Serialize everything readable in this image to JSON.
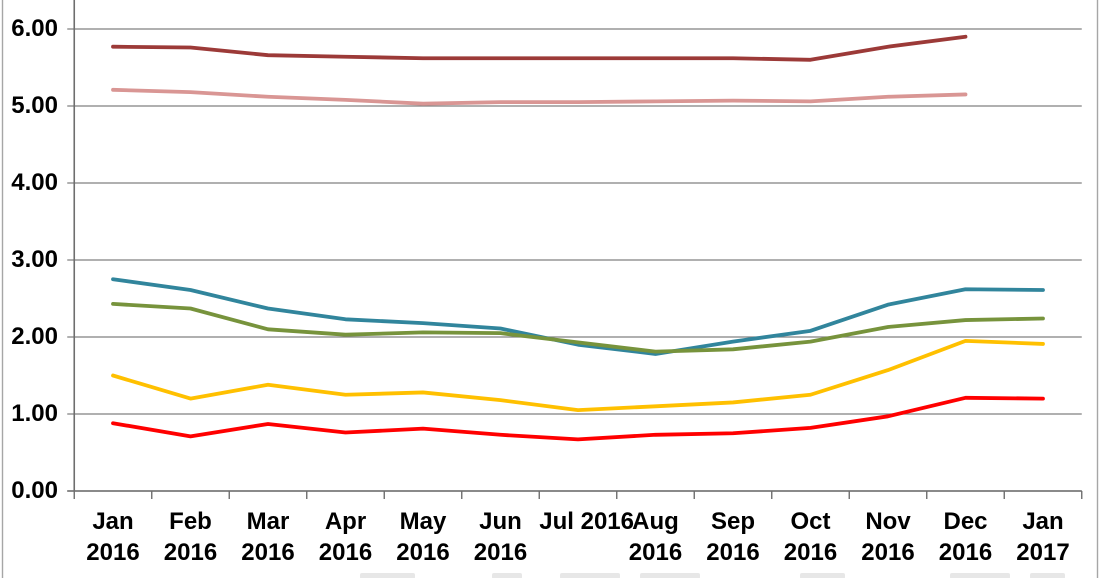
{
  "chart_data": {
    "type": "line",
    "title": "",
    "xlabel": "",
    "ylabel": "",
    "categories": [
      "Jan 2016",
      "Feb 2016",
      "Mar 2016",
      "Apr 2016",
      "May 2016",
      "Jun 2016",
      "Jul 2016",
      "Aug 2016",
      "Sep 2016",
      "Oct 2016",
      "Nov 2016",
      "Dec 2016",
      "Jan 2017"
    ],
    "x_tick_label_lines": [
      [
        "Jan",
        "2016"
      ],
      [
        "Feb",
        "2016"
      ],
      [
        "Mar",
        "2016"
      ],
      [
        "Apr",
        "2016"
      ],
      [
        "May",
        "2016"
      ],
      [
        "Jun",
        "2016"
      ],
      [
        "Jul 2016"
      ],
      [
        "Aug",
        "2016"
      ],
      [
        "Sep",
        "2016"
      ],
      [
        "Oct",
        "2016"
      ],
      [
        "Nov",
        "2016"
      ],
      [
        "Dec",
        "2016"
      ],
      [
        "Jan",
        "2017"
      ]
    ],
    "y_tick_labels": [
      "0.00",
      "1.00",
      "2.00",
      "3.00",
      "4.00",
      "5.00",
      "6.00"
    ],
    "ylim": [
      0,
      6.35
    ],
    "grid": true,
    "legend_position": "bottom-cut-off",
    "series": [
      {
        "name": "dark-red-line",
        "color": "#9C3A38",
        "values": [
          5.77,
          5.76,
          5.66,
          5.64,
          5.62,
          5.62,
          5.62,
          5.62,
          5.62,
          5.6,
          5.77,
          5.9
        ]
      },
      {
        "name": "pink-line",
        "color": "#D99694",
        "values": [
          5.21,
          5.18,
          5.12,
          5.08,
          5.03,
          5.05,
          5.05,
          5.06,
          5.07,
          5.06,
          5.12,
          5.15
        ]
      },
      {
        "name": "teal-line",
        "color": "#31859C",
        "values": [
          2.75,
          2.61,
          2.37,
          2.23,
          2.18,
          2.11,
          1.9,
          1.78,
          1.94,
          2.08,
          2.42,
          2.62,
          2.61
        ]
      },
      {
        "name": "olive-line",
        "color": "#77933C",
        "values": [
          2.43,
          2.37,
          2.1,
          2.03,
          2.06,
          2.05,
          1.93,
          1.81,
          1.84,
          1.94,
          2.13,
          2.22,
          2.24
        ]
      },
      {
        "name": "gold-line",
        "color": "#FFC000",
        "values": [
          1.5,
          1.2,
          1.38,
          1.25,
          1.28,
          1.18,
          1.05,
          1.1,
          1.15,
          1.25,
          1.57,
          1.95,
          1.91
        ]
      },
      {
        "name": "red-line",
        "color": "#FF0000",
        "values": [
          0.88,
          0.71,
          0.87,
          0.76,
          0.81,
          0.73,
          0.67,
          0.73,
          0.75,
          0.82,
          0.97,
          1.21,
          1.2
        ]
      }
    ],
    "axis_color": "#6E6E6E",
    "gridline_color": "#808080",
    "outer_border_color": "#A6A6A6",
    "text_color": "#000000"
  }
}
